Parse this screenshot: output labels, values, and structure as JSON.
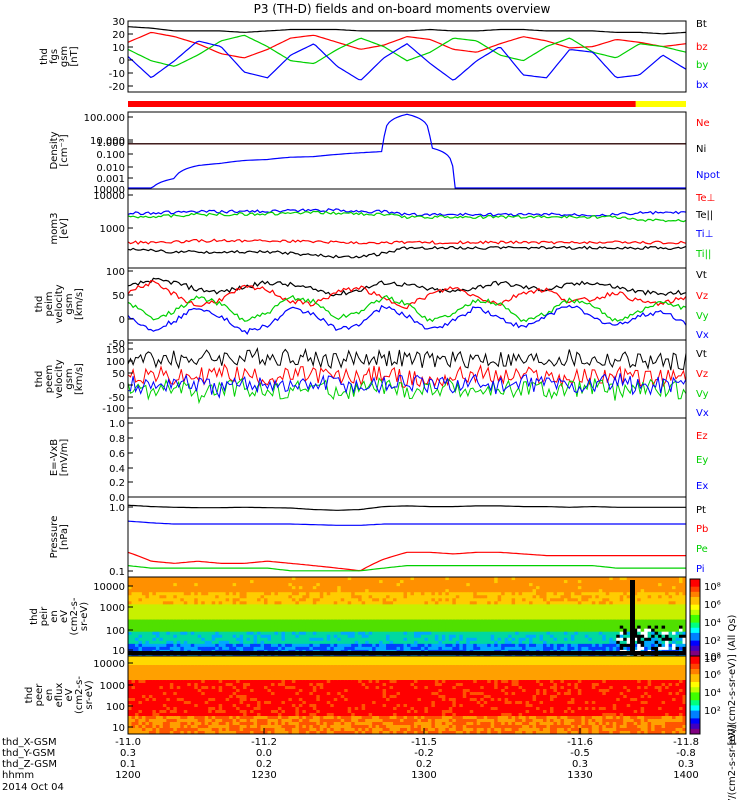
{
  "title": "P3 (TH-D) fields and on-board moments overview",
  "colors": {
    "black": "#000000",
    "red": "#ff0000",
    "green": "#00d000",
    "blue": "#0000ff",
    "bar_red": "#ff0000",
    "bar_yellow": "#ffff00"
  },
  "chart_data": [
    {
      "type": "line",
      "panel": "fgs",
      "ylabel_lines": [
        "thd",
        "fgs",
        "gsm",
        "[nT]"
      ],
      "yticks": [
        "30",
        "20",
        "10",
        "0",
        "-10",
        "-20"
      ],
      "ylim": [
        -20,
        30
      ],
      "series": [
        {
          "name": "Bt",
          "color": "black",
          "values": [
            26,
            25,
            23,
            23,
            23,
            22,
            23,
            24,
            24,
            24,
            23,
            23,
            23,
            24,
            23,
            23,
            24,
            24,
            23,
            23,
            23,
            22,
            22,
            21,
            22
          ]
        },
        {
          "name": "bz",
          "color": "red",
          "values": [
            15,
            22,
            19,
            14,
            7,
            4,
            10,
            18,
            20,
            15,
            10,
            13,
            19,
            17,
            10,
            8,
            14,
            19,
            16,
            11,
            12,
            17,
            15,
            12,
            14
          ]
        },
        {
          "name": "by",
          "color": "green",
          "values": [
            10,
            2,
            -2,
            6,
            16,
            20,
            12,
            2,
            0,
            10,
            18,
            12,
            2,
            8,
            18,
            16,
            6,
            2,
            12,
            18,
            8,
            4,
            14,
            12,
            8
          ]
        },
        {
          "name": "bx",
          "color": "blue",
          "values": [
            5,
            -10,
            2,
            16,
            12,
            -6,
            -10,
            6,
            14,
            -2,
            -12,
            4,
            14,
            0,
            -12,
            2,
            12,
            -8,
            -10,
            10,
            8,
            -10,
            -8,
            6,
            -4
          ]
        }
      ],
      "bar": {
        "segments": [
          {
            "color": "bar_red",
            "fraction": 0.91
          },
          {
            "color": "bar_yellow",
            "fraction": 0.09
          }
        ]
      }
    },
    {
      "type": "line",
      "panel": "density",
      "ylabel_lines": [
        "Density",
        "[cm⁻³]"
      ],
      "yticks": [
        "100.000",
        "10.000",
        "1.000",
        "0.100",
        "0.010",
        "0.001",
        "10000"
      ],
      "scale": "log",
      "ylim": [
        0.0003,
        300
      ],
      "series": [
        {
          "name": "Ne",
          "color": "red",
          "values": [
            1,
            1,
            1,
            1,
            1,
            1,
            1,
            1,
            1,
            1,
            1,
            1,
            1,
            1,
            1,
            1,
            1,
            1,
            1,
            1,
            1,
            1,
            1,
            1,
            1
          ]
        },
        {
          "name": "Ni",
          "color": "black",
          "values": [
            1,
            1,
            1,
            1,
            1,
            1,
            1,
            1,
            1,
            1,
            1,
            1,
            1,
            1,
            1,
            1,
            1,
            1,
            1,
            1,
            1,
            1,
            1,
            1,
            1
          ]
        },
        {
          "name": "Npot",
          "color": "blue",
          "values": [
            0.0003,
            0.0003,
            0.002,
            0.02,
            0.03,
            0.05,
            0.06,
            0.09,
            0.1,
            0.15,
            0.2,
            0.25,
            200,
            0.5,
            0.0003,
            0.0003,
            0.0003,
            0.0003,
            0.0003,
            0.0003,
            0.0003,
            0.0003,
            0.0003,
            0.0003,
            0.0003
          ]
        }
      ]
    },
    {
      "type": "line",
      "panel": "temperature",
      "ylabel_lines": [
        "mom3",
        "[eV]"
      ],
      "yticks": [
        "10000",
        "1000"
      ],
      "scale": "log",
      "ylim": [
        400,
        12000
      ],
      "series": [
        {
          "name": "Te⊥",
          "color": "red",
          "values": [
            1200,
            1200,
            1250,
            1300,
            1300,
            1300,
            1300,
            1250,
            1250,
            1200,
            1200,
            1200,
            1200,
            1200,
            1200,
            1200,
            1200,
            1200,
            1200,
            1200,
            1200,
            1200,
            1200,
            1200,
            1200
          ]
        },
        {
          "name": "Te||",
          "color": "black",
          "values": [
            900,
            850,
            800,
            800,
            800,
            800,
            800,
            750,
            700,
            650,
            650,
            750,
            950,
            950,
            950,
            950,
            950,
            950,
            950,
            950,
            950,
            950,
            950,
            950,
            950
          ]
        },
        {
          "name": "Ti⊥",
          "color": "blue",
          "values": [
            4200,
            4300,
            4400,
            4500,
            4500,
            4600,
            4600,
            4700,
            4800,
            4800,
            4600,
            4500,
            4000,
            4000,
            4000,
            4000,
            4000,
            4000,
            4000,
            4000,
            4000,
            4000,
            4300,
            4300,
            4300
          ]
        },
        {
          "name": "Ti||",
          "color": "green",
          "values": [
            3600,
            3700,
            3800,
            4000,
            4000,
            4100,
            4100,
            4200,
            4300,
            4300,
            4100,
            4000,
            3600,
            3600,
            3600,
            3600,
            3600,
            3600,
            3600,
            3600,
            3600,
            3600,
            3100,
            3100,
            3100
          ]
        }
      ]
    },
    {
      "type": "line",
      "panel": "peim_velocity",
      "ylabel_lines": [
        "thd",
        "peim",
        "velocity",
        "gsm",
        "[km/s]"
      ],
      "yticks": [
        "100",
        "50",
        "0",
        "-50"
      ],
      "ylim": [
        -50,
        100
      ],
      "series": [
        {
          "name": "Vt",
          "color": "black",
          "values": [
            60,
            75,
            70,
            55,
            50,
            60,
            70,
            65,
            55,
            45,
            55,
            70,
            65,
            55,
            50,
            60,
            70,
            60,
            55,
            65,
            70,
            60,
            50,
            45,
            50
          ]
        },
        {
          "name": "Vz",
          "color": "red",
          "values": [
            50,
            70,
            45,
            20,
            35,
            60,
            55,
            30,
            25,
            50,
            60,
            35,
            20,
            45,
            60,
            40,
            25,
            50,
            55,
            30,
            35,
            50,
            30,
            25,
            40
          ]
        },
        {
          "name": "Vy",
          "color": "green",
          "values": [
            30,
            -5,
            10,
            40,
            25,
            -10,
            5,
            40,
            30,
            -5,
            10,
            40,
            25,
            -10,
            5,
            35,
            25,
            -10,
            5,
            35,
            20,
            -10,
            10,
            30,
            15
          ]
        },
        {
          "name": "Vx",
          "color": "blue",
          "values": [
            0,
            -30,
            -10,
            20,
            0,
            -35,
            -20,
            15,
            5,
            -30,
            -15,
            20,
            0,
            -30,
            -10,
            20,
            -5,
            -25,
            0,
            25,
            -5,
            -20,
            0,
            10,
            -15
          ]
        }
      ]
    },
    {
      "type": "line",
      "panel": "peem_velocity",
      "ylabel_lines": [
        "thd",
        "peem",
        "velocity",
        "gsm",
        "[km/s]"
      ],
      "yticks": [
        "150",
        "100",
        "50",
        "0",
        "-50",
        "-100"
      ],
      "ylim": [
        -150,
        150
      ],
      "series": [
        {
          "name": "Vt",
          "color": "black",
          "values": [
            70,
            80,
            75,
            80,
            85,
            80,
            85,
            90,
            80,
            75,
            80,
            85,
            75,
            70,
            75,
            80,
            75,
            70,
            75,
            80,
            70,
            75,
            70,
            65,
            70
          ]
        },
        {
          "name": "Vz",
          "color": "red",
          "values": [
            10,
            20,
            0,
            10,
            25,
            15,
            5,
            10,
            20,
            5,
            10,
            20,
            0,
            -10,
            10,
            20,
            5,
            15,
            10,
            0,
            10,
            15,
            5,
            0,
            10
          ]
        },
        {
          "name": "Vy",
          "color": "green",
          "values": [
            -40,
            -50,
            -30,
            -60,
            -40,
            -30,
            -50,
            -40,
            -30,
            -50,
            -40,
            -30,
            -50,
            -40,
            -30,
            -50,
            -40,
            -30,
            -50,
            -40,
            -30,
            -50,
            -40,
            -30,
            -50
          ]
        },
        {
          "name": "Vx",
          "color": "blue",
          "values": [
            -20,
            -30,
            -10,
            -20,
            -40,
            -20,
            -10,
            -30,
            -20,
            -10,
            -30,
            -20,
            -10,
            -30,
            -20,
            -10,
            -30,
            -20,
            -10,
            -30,
            -20,
            -10,
            -30,
            -20,
            -10
          ]
        }
      ]
    },
    {
      "type": "line",
      "panel": "efield",
      "ylabel_lines": [
        "E=-VxB",
        "[mV/m]"
      ],
      "yticks": [
        "1.0",
        "0.8",
        "0.6",
        "0.4",
        "0.2",
        "0.0"
      ],
      "ylim": [
        0,
        1
      ],
      "series": [
        {
          "name": "Ez",
          "color": "red",
          "values": []
        },
        {
          "name": "Ey",
          "color": "green",
          "values": []
        },
        {
          "name": "Ex",
          "color": "blue",
          "values": []
        }
      ]
    },
    {
      "type": "line",
      "panel": "pressure",
      "ylabel_lines": [
        "Pressure",
        "[nPa]"
      ],
      "yticks": [
        "1.0",
        "0.1"
      ],
      "scale": "log",
      "ylim": [
        0.09,
        1.2
      ],
      "series": [
        {
          "name": "Pt",
          "color": "black",
          "values": [
            0.92,
            0.88,
            0.86,
            0.85,
            0.85,
            0.86,
            0.85,
            0.84,
            0.8,
            0.78,
            0.8,
            0.88,
            0.9,
            0.88,
            0.88,
            0.9,
            0.9,
            0.88,
            0.88,
            0.86,
            0.88,
            0.86,
            0.86,
            0.86,
            0.86
          ]
        },
        {
          "name": "Pb",
          "color": "red",
          "values": [
            0.2,
            0.15,
            0.14,
            0.15,
            0.14,
            0.14,
            0.15,
            0.14,
            0.13,
            0.12,
            0.11,
            0.16,
            0.2,
            0.2,
            0.19,
            0.2,
            0.2,
            0.19,
            0.18,
            0.18,
            0.18,
            0.18,
            0.18,
            0.18,
            0.18
          ]
        },
        {
          "name": "Pe",
          "color": "green",
          "values": [
            0.13,
            0.12,
            0.12,
            0.12,
            0.12,
            0.12,
            0.12,
            0.11,
            0.11,
            0.11,
            0.11,
            0.12,
            0.13,
            0.13,
            0.13,
            0.13,
            0.13,
            0.13,
            0.13,
            0.13,
            0.13,
            0.12,
            0.12,
            0.12,
            0.12
          ]
        },
        {
          "name": "Pi",
          "color": "blue",
          "values": [
            0.55,
            0.52,
            0.5,
            0.5,
            0.5,
            0.5,
            0.5,
            0.5,
            0.49,
            0.48,
            0.48,
            0.5,
            0.5,
            0.5,
            0.5,
            0.5,
            0.5,
            0.5,
            0.5,
            0.5,
            0.5,
            0.5,
            0.5,
            0.5,
            0.5
          ]
        }
      ]
    },
    {
      "type": "heatmap",
      "panel": "peir_eflux",
      "ylabel_lines": [
        "thd",
        "peir",
        "en",
        "eV",
        "(cm2-s-",
        "sr-eV)"
      ],
      "yticks": [
        "10000",
        "1000",
        "100",
        "10"
      ],
      "colorbar": {
        "label": "[eV/(cm2-s-sr-eV)] (All Qs)",
        "ticks": [
          "10⁸",
          "10⁶",
          "10⁴",
          "10²",
          "10⁰"
        ]
      }
    },
    {
      "type": "heatmap",
      "panel": "peer_eflux",
      "ylabel_lines": [
        "thd",
        "peer",
        "en",
        "eflux",
        "eV",
        "(cm2-s-",
        "sr-eV)"
      ],
      "yticks": [
        "10000",
        "1000",
        "100",
        "10"
      ],
      "colorbar": {
        "label": "[eV/(cm2-s-sr-eV)]",
        "ticks": [
          "10⁸",
          "10⁶",
          "10⁴",
          "10²"
        ]
      }
    }
  ],
  "xaxis": {
    "rows": [
      {
        "label": "thd_X-GSM",
        "values": [
          "-11.0",
          "-11.2",
          "-11.5",
          "-11.6",
          "-11.8"
        ]
      },
      {
        "label": "thd_Y-GSM",
        "values": [
          "0.3",
          "0.0",
          "-0.2",
          "-0.5",
          "-0.8"
        ]
      },
      {
        "label": "thd_Z-GSM",
        "values": [
          "0.1",
          "0.2",
          "0.2",
          "0.3",
          "0.3"
        ]
      },
      {
        "label": "hhmm",
        "values": [
          "1200",
          "1230",
          "1300",
          "1330",
          "1400"
        ]
      }
    ],
    "date": "2014 Oct 04"
  }
}
